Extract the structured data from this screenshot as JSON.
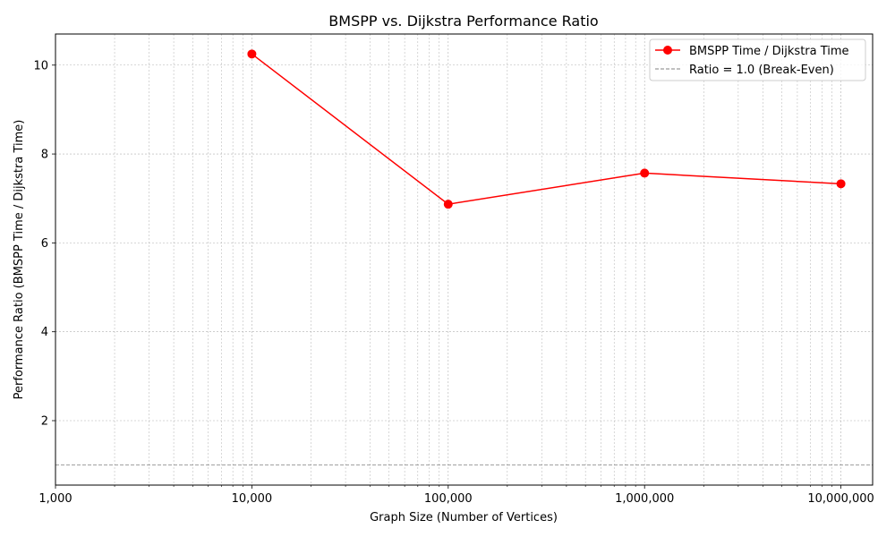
{
  "chart_data": {
    "type": "line",
    "title": "BMSPP vs. Dijkstra Performance Ratio",
    "xlabel": "Graph Size (Number of Vertices)",
    "ylabel": "Performance Ratio (BMSPP Time / Dijkstra Time)",
    "x_scale": "log",
    "xlim": [
      1000,
      14500000
    ],
    "ylim": [
      0.55,
      10.7
    ],
    "x_ticks": [
      1000,
      10000,
      100000,
      1000000,
      10000000
    ],
    "x_tick_labels": [
      "1,000",
      "10,000",
      "100,000",
      "1,000,000",
      "10,000,000"
    ],
    "y_ticks": [
      2,
      4,
      6,
      8,
      10
    ],
    "y_tick_labels": [
      "2",
      "4",
      "6",
      "8",
      "10"
    ],
    "grid": true,
    "grid_style": "dashed, major and minor",
    "legend_position": "top-right",
    "series": [
      {
        "name": "BMSPP Time / Dijkstra Time",
        "color": "#ff0000",
        "marker": "circle",
        "x": [
          10000,
          100000,
          1000000,
          10000000
        ],
        "y": [
          10.25,
          6.87,
          7.57,
          7.33
        ]
      }
    ],
    "reference_lines": [
      {
        "name": "Ratio = 1.0 (Break-Even)",
        "y": 1.0,
        "color": "#808080",
        "style": "dashed"
      }
    ]
  }
}
